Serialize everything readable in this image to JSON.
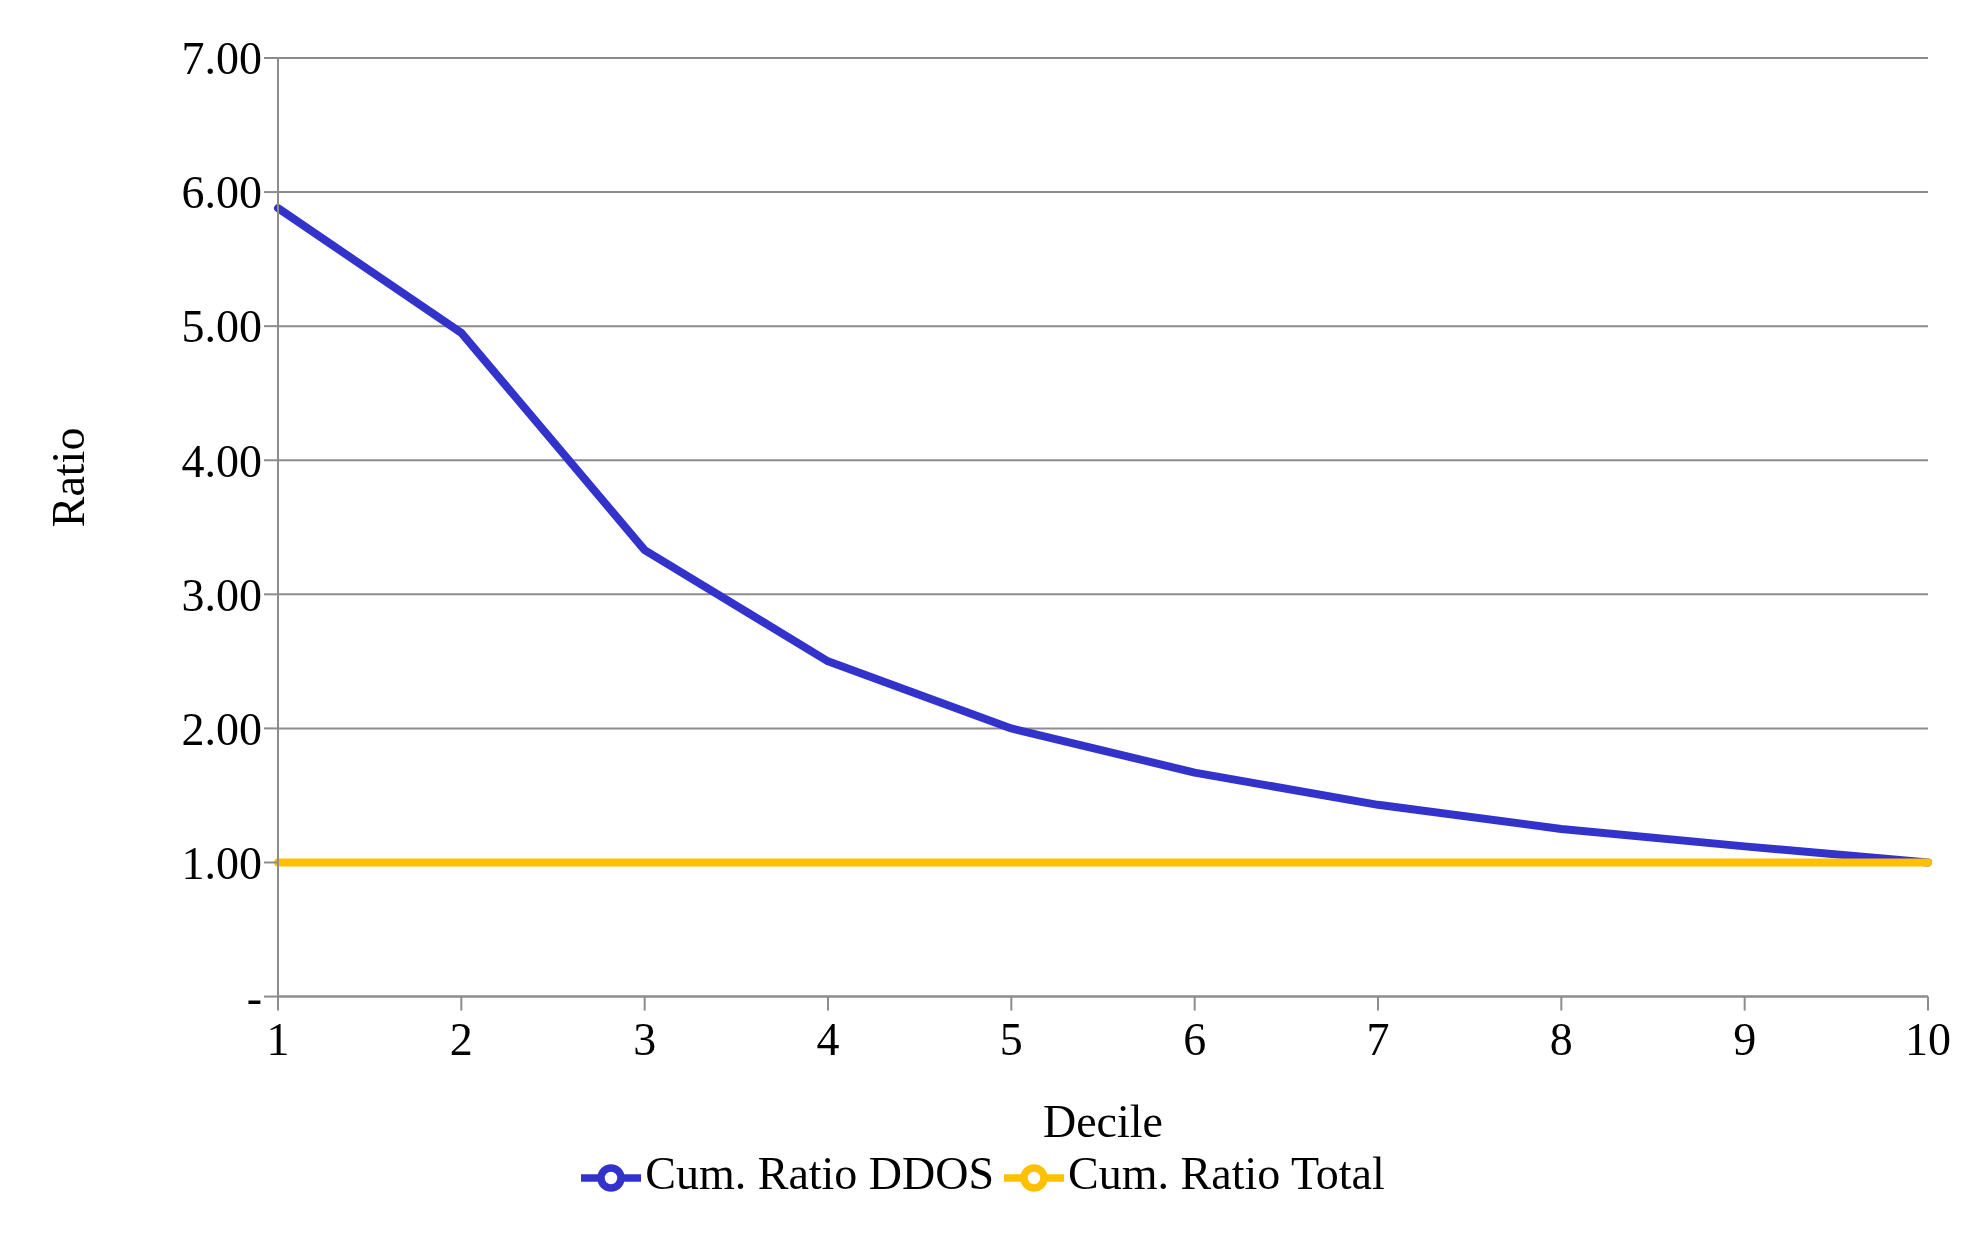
{
  "chart_data": {
    "type": "line",
    "xlabel": "Decile",
    "ylabel": "Ratio",
    "categories": [
      "1",
      "2",
      "3",
      "4",
      "5",
      "6",
      "7",
      "8",
      "9",
      "10"
    ],
    "series": [
      {
        "name": "Cum. Ratio DDOS",
        "color": "#3333cc",
        "values": [
          5.88,
          4.95,
          3.33,
          2.5,
          2.0,
          1.67,
          1.43,
          1.25,
          1.12,
          1.0
        ]
      },
      {
        "name": "Cum. Ratio Total",
        "color": "#ffc000",
        "values": [
          1.0,
          1.0,
          1.0,
          1.0,
          1.0,
          1.0,
          1.0,
          1.0,
          1.0,
          1.0
        ]
      }
    ],
    "ylim": [
      0,
      7
    ],
    "yticks": [
      {
        "value": 0,
        "label": "-"
      },
      {
        "value": 1,
        "label": "1.00"
      },
      {
        "value": 2,
        "label": "2.00"
      },
      {
        "value": 3,
        "label": "3.00"
      },
      {
        "value": 4,
        "label": "4.00"
      },
      {
        "value": 5,
        "label": "5.00"
      },
      {
        "value": 6,
        "label": "6.00"
      },
      {
        "value": 7,
        "label": "7.00"
      }
    ],
    "grid": "y",
    "legend": "bottom",
    "marker": "none",
    "line_style": "solid"
  }
}
